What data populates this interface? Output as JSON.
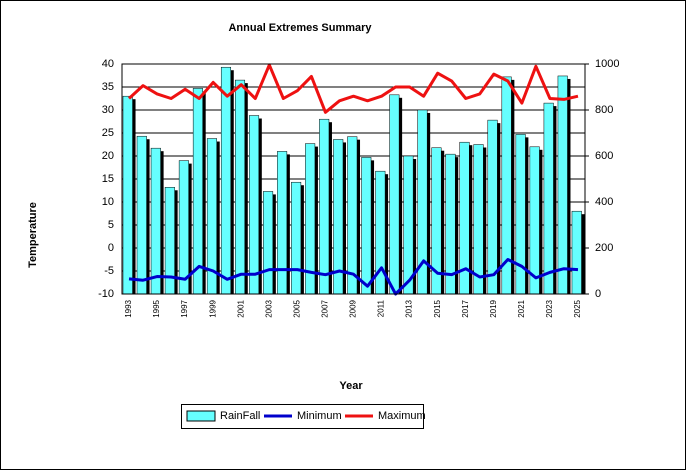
{
  "chart_data": {
    "type": "bar-line",
    "title": "Annual Extremes Summary",
    "x_label": "Year",
    "y_label": "Temperature",
    "categories": [
      "1993",
      null,
      "1995",
      null,
      "1997",
      null,
      "1999",
      null,
      "2001",
      null,
      "2003",
      null,
      "2005",
      null,
      "2007",
      null,
      "2009",
      null,
      "2011",
      null,
      "2013",
      null,
      "2015",
      null,
      "2017",
      null,
      "2019",
      null,
      "2021",
      null,
      "2023",
      null,
      "2025"
    ],
    "ylim": [
      -10,
      40
    ],
    "yticks": [
      -10,
      -5,
      0,
      5,
      10,
      15,
      20,
      25,
      30,
      35,
      40
    ],
    "y2lim": [
      0,
      1000
    ],
    "y2ticks": [
      0,
      200,
      400,
      600,
      800,
      1000
    ],
    "grid": true,
    "legend": "bottom",
    "series": [
      {
        "name": "RainFall",
        "type": "bar",
        "axis": "y2",
        "color": "#66ffff",
        "values": [
          860,
          686,
          634,
          464,
          580,
          894,
          676,
          986,
          930,
          776,
          446,
          620,
          486,
          654,
          760,
          672,
          684,
          594,
          534,
          866,
          600,
          800,
          636,
          608,
          660,
          650,
          756,
          944,
          694,
          640,
          830,
          948,
          360
        ]
      },
      {
        "name": "Minimum",
        "type": "line",
        "color": "#0000cc",
        "values": [
          -6.7,
          -7,
          -6.2,
          -6.3,
          -6.8,
          -4,
          -5,
          -6.8,
          -5.7,
          -5.7,
          -4.7,
          -4.7,
          -4.7,
          -5.3,
          -5.8,
          -5,
          -5.7,
          -8.3,
          -4.3,
          -10,
          -7,
          -2.8,
          -5.5,
          -5.8,
          -4.5,
          -6.3,
          -5.8,
          -2.5,
          -4,
          -6.5,
          -5.3,
          -4.5,
          -4.7
        ]
      },
      {
        "name": "Maximum",
        "type": "line",
        "color": "#ee1111",
        "values": [
          32.5,
          35.3,
          33.5,
          32.5,
          34.5,
          32.5,
          36,
          33,
          35.5,
          32.5,
          39.8,
          32.5,
          34.2,
          37.3,
          29.5,
          32,
          33,
          32,
          33,
          35,
          35,
          33,
          38,
          36.3,
          32.5,
          33.5,
          37.8,
          36.3,
          31.5,
          39.5,
          32.5,
          32.3,
          33
        ]
      }
    ]
  }
}
